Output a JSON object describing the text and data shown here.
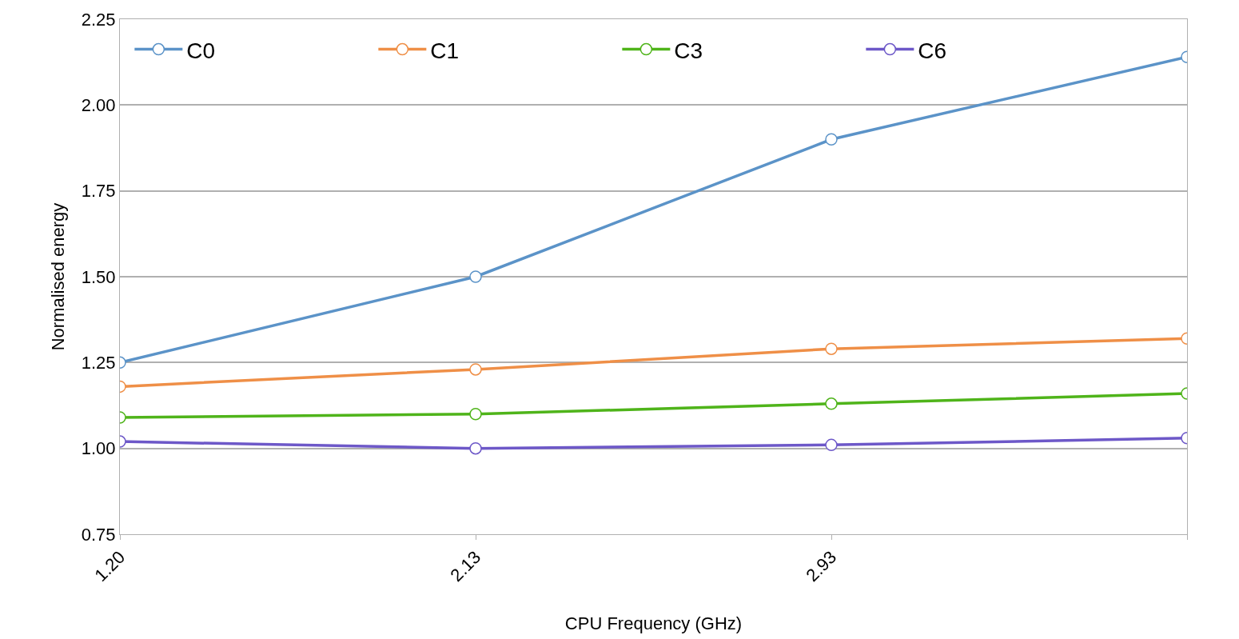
{
  "chart_data": {
    "type": "line",
    "xlabel": "CPU Frequency (GHz)",
    "ylabel": "Normalised energy",
    "categories": [
      "1.20",
      "2.13",
      "2.93",
      null
    ],
    "series": [
      {
        "name": "C0",
        "color": "#5b93c8",
        "values": [
          1.25,
          1.5,
          1.9,
          2.14
        ]
      },
      {
        "name": "C1",
        "color": "#ef8f47",
        "values": [
          1.18,
          1.23,
          1.29,
          1.32
        ]
      },
      {
        "name": "C3",
        "color": "#4fb41a",
        "values": [
          1.09,
          1.1,
          1.13,
          1.16
        ]
      },
      {
        "name": "C6",
        "color": "#6d58c8",
        "values": [
          1.02,
          1.0,
          1.01,
          1.03
        ]
      }
    ],
    "ylim": [
      0.75,
      2.25
    ],
    "yticks": [
      0.75,
      {
        "value": 1,
        "label": "1.00"
      },
      1.25,
      {
        "value": 1.5,
        "label": "1.50"
      },
      1.75,
      {
        "value": 2,
        "label": "2.00"
      },
      2.25
    ],
    "grid": "y",
    "legend": "top left",
    "marker": "circle",
    "line_style": "solid"
  }
}
